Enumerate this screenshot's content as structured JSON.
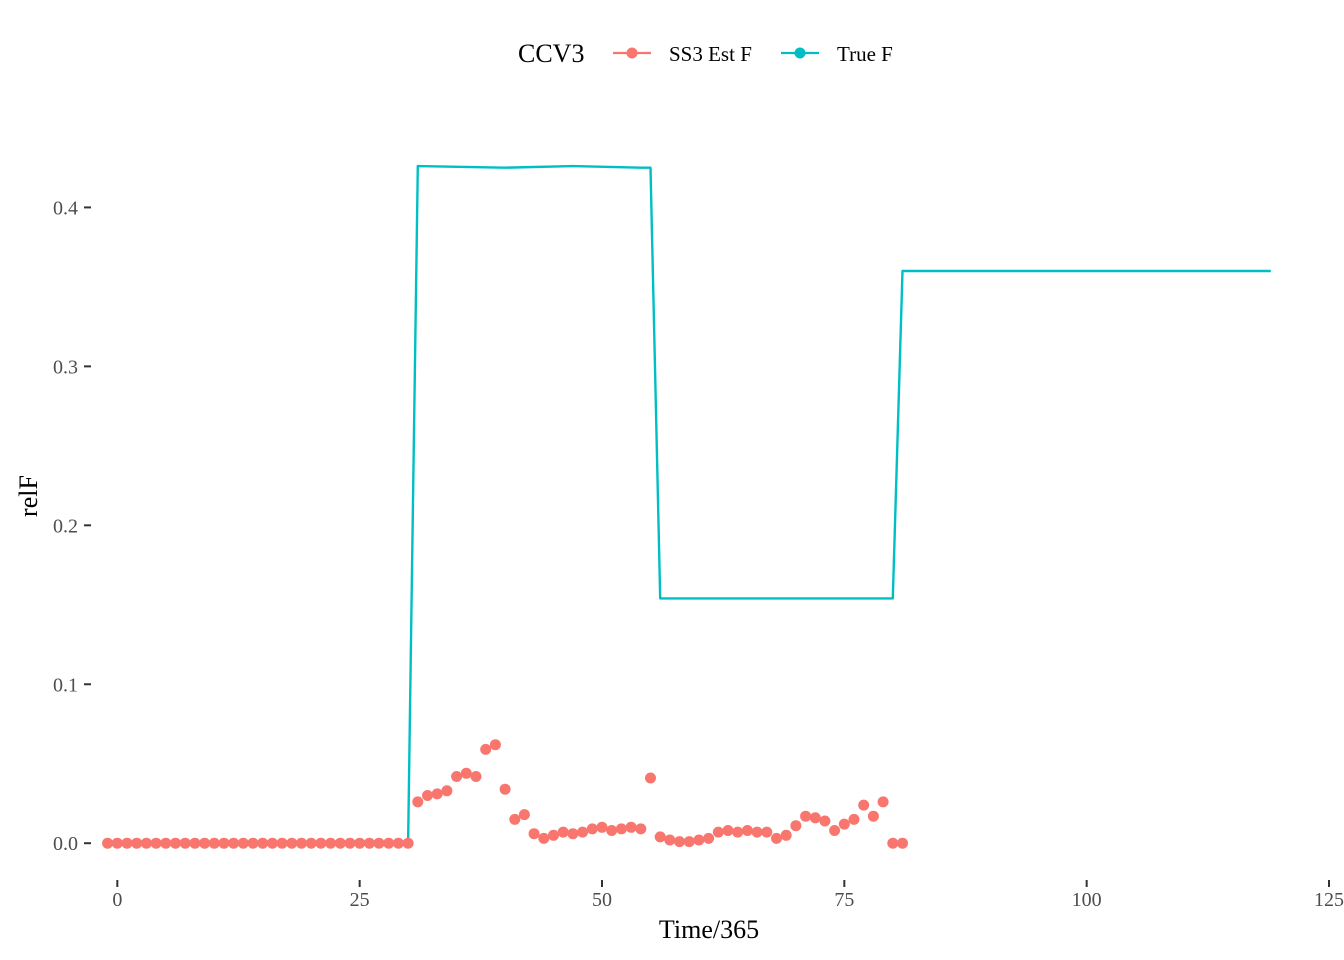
{
  "chart_data": {
    "type": "line",
    "title": "",
    "xlabel": "Time/365",
    "ylabel": "relF",
    "xlim": [
      -2.2,
      125
    ],
    "ylim": [
      -0.02,
      0.455
    ],
    "x_ticks": [
      0,
      25,
      50,
      75,
      100,
      125
    ],
    "x_tick_labels": [
      "0",
      "25",
      "50",
      "75",
      "100",
      "125"
    ],
    "y_ticks": [
      0.0,
      0.1,
      0.2,
      0.3,
      0.4
    ],
    "y_tick_labels": [
      "0.0",
      "0.1",
      "0.2",
      "0.3",
      "0.4"
    ],
    "grid": false,
    "legend": {
      "position": "top",
      "title": "CCV3",
      "entries": [
        "SS3 Est F",
        "True F"
      ]
    },
    "colors": {
      "ss3": "#F8766D",
      "true": "#00BFC4",
      "tick": "#333333"
    },
    "series": [
      {
        "name": "SS3 Est F",
        "style": "points",
        "x": [
          -1,
          0,
          1,
          2,
          3,
          4,
          5,
          6,
          7,
          8,
          9,
          10,
          11,
          12,
          13,
          14,
          15,
          16,
          17,
          18,
          19,
          20,
          21,
          22,
          23,
          24,
          25,
          26,
          27,
          28,
          29,
          30,
          31,
          32,
          33,
          34,
          35,
          36,
          37,
          38,
          39,
          40,
          41,
          42,
          43,
          44,
          45,
          46,
          47,
          48,
          49,
          50,
          51,
          52,
          53,
          54,
          55,
          56,
          57,
          58,
          59,
          60,
          61,
          62,
          63,
          64,
          65,
          66,
          67,
          68,
          69,
          70,
          71,
          72,
          73,
          74,
          75,
          76,
          77,
          78,
          79,
          80,
          81
        ],
        "y": [
          0,
          0,
          0,
          0,
          0,
          0,
          0,
          0,
          0,
          0,
          0,
          0,
          0,
          0,
          0,
          0,
          0,
          0,
          0,
          0,
          0,
          0,
          0,
          0,
          0,
          0,
          0,
          0,
          0,
          0,
          0,
          0,
          0.026,
          0.03,
          0.031,
          0.033,
          0.042,
          0.044,
          0.042,
          0.059,
          0.062,
          0.034,
          0.015,
          0.018,
          0.006,
          0.003,
          0.005,
          0.007,
          0.006,
          0.007,
          0.009,
          0.01,
          0.008,
          0.009,
          0.01,
          0.009,
          0.041,
          0.004,
          0.002,
          0.001,
          0.001,
          0.002,
          0.003,
          0.007,
          0.008,
          0.007,
          0.008,
          0.007,
          0.007,
          0.003,
          0.005,
          0.011,
          0.017,
          0.016,
          0.014,
          0.008,
          0.012,
          0.015,
          0.024,
          0.017,
          0.026,
          0,
          0
        ]
      },
      {
        "name": "True F",
        "style": "line",
        "x": [
          30,
          31,
          40,
          47,
          54,
          55,
          56,
          65,
          70,
          80,
          81,
          90,
          100,
          119
        ],
        "y": [
          0,
          0.426,
          0.425,
          0.426,
          0.425,
          0.425,
          0.154,
          0.154,
          0.154,
          0.154,
          0.36,
          0.36,
          0.36,
          0.36
        ]
      }
    ]
  }
}
